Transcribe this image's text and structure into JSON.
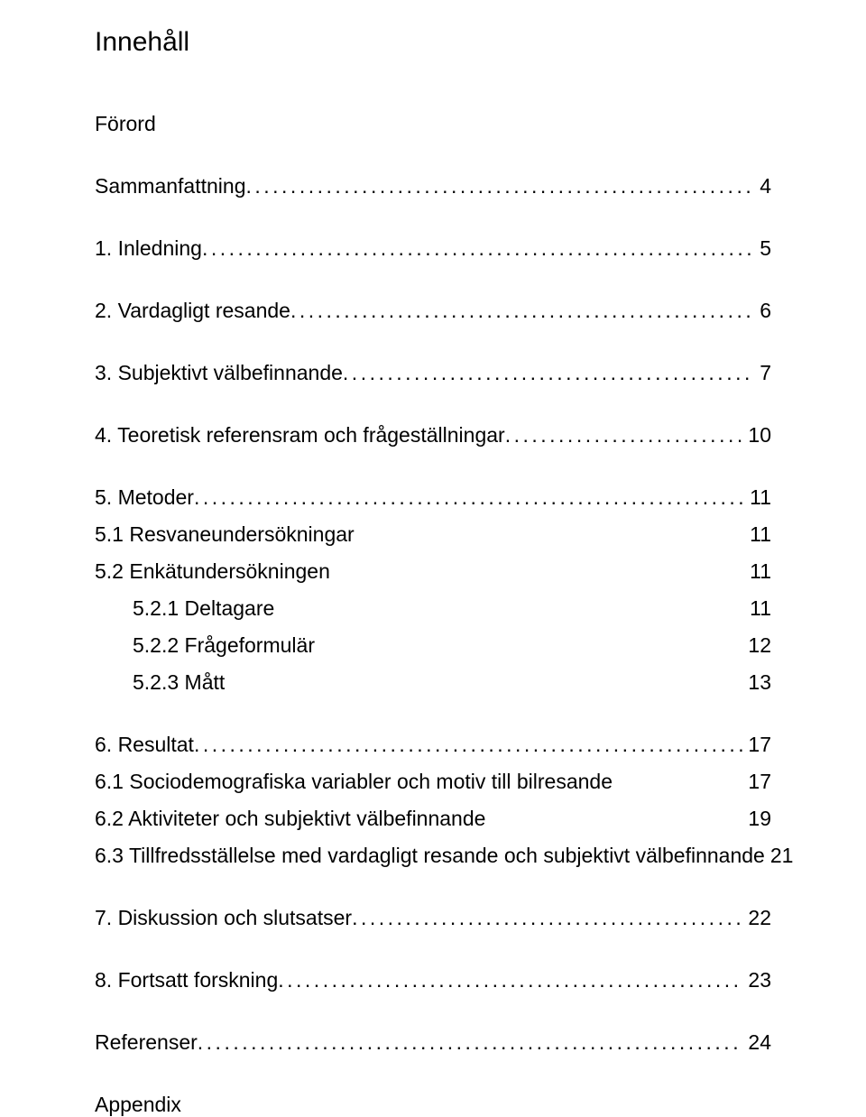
{
  "title": "Innehåll",
  "foreword": "Förord",
  "appendix": "Appendix",
  "dots": "........................................................................................................................................................",
  "toc": {
    "summary": {
      "label": "Sammanfattning",
      "page": "4"
    },
    "s1": {
      "label": "1. Inledning",
      "page": "5"
    },
    "s2": {
      "label": "2. Vardagligt resande",
      "page": "6"
    },
    "s3": {
      "label": "3. Subjektivt välbefinnande",
      "page": "7"
    },
    "s4": {
      "label": "4. Teoretisk referensram och frågeställningar",
      "page": "10"
    },
    "s5": {
      "label": "5. Metoder",
      "page": "11"
    },
    "s5_1": {
      "label": "5.1 Resvaneundersökningar",
      "page": "11"
    },
    "s5_2": {
      "label": "5.2 Enkätundersökningen",
      "page": "11"
    },
    "s5_2_1": {
      "label": "5.2.1 Deltagare",
      "page": "11"
    },
    "s5_2_2": {
      "label": "5.2.2 Frågeformulär",
      "page": "12"
    },
    "s5_2_3": {
      "label": "5.2.3 Mått",
      "page": "13"
    },
    "s6": {
      "label": "6. Resultat",
      "page": "17"
    },
    "s6_1": {
      "label": "6.1 Sociodemografiska variabler och motiv till bilresande",
      "page": "17"
    },
    "s6_2": {
      "label": "6.2 Aktiviteter och subjektivt välbefinnande",
      "page": "19"
    },
    "s6_3": {
      "label": "6.3 Tillfredsställelse med  vardagligt resande och subjektivt välbefinnande",
      "page": "21"
    },
    "s7": {
      "label": "7. Diskussion och slutsatser",
      "page": "22"
    },
    "s8": {
      "label": "8. Fortsatt forskning",
      "page": "23"
    },
    "refs": {
      "label": "Referenser",
      "page": "24"
    }
  }
}
